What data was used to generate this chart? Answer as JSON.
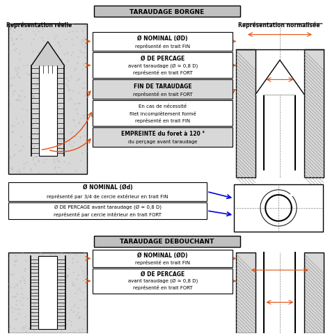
{
  "title_borgne": "TARAUDAGE BORGNE",
  "title_debouchant": "TARAUDAGE DEBOUCHANT",
  "label_reelle": "Représentation réelle",
  "label_normalisee": "Représentation normalisée",
  "box1_line1": "Ø NOMINAL (ØD)",
  "box1_line2": "représenté en trait FIN",
  "box2_line1": "Ø DE PERCAGE",
  "box2_line2": "avant taraudage (Ø ≈ 0,8 D)",
  "box2_line3": "représenté en trait FORT",
  "box3_line1": "FIN DE TARAUDAGE",
  "box3_line2": "représenté en trait FORT",
  "box4_line1": "En cas de nécessité",
  "box4_line2": "filet incomplètement formé",
  "box4_line3": "représenté en trait FIN",
  "box5_line1": "EMPREINTE du foret à 120 °",
  "box5_line2": "du perçage avant taraudage",
  "mid_box1_l1": "Ø NOMINAL (Ød)",
  "mid_box1_l2a": "représenté par ",
  "mid_box1_l2b": "3/4 de cercle extérieur",
  "mid_box1_l2c": " en trait FIN",
  "mid_box2_l1a": "Ø DE PERCAGE",
  "mid_box2_l1b": " avant taraudage (Ø ≈ 0,8 D)",
  "mid_box2_l2a": "représenté par ",
  "mid_box2_l2b": "cercle intérieur",
  "mid_box2_l2c": " en trait FORT",
  "deb_box1_l1": "Ø NOMINAL (ØD)",
  "deb_box1_l2": "représenté en trait FIN",
  "deb_box2_l1": "Ø DE PERCAGE",
  "deb_box2_l2": "avant taraudage (Ø ≈ 0,8 D)",
  "deb_box2_l3": "représenté en trait FORT",
  "color_orange": "#E05010",
  "color_blue": "#0000DD",
  "color_black": "#000000",
  "color_gray_title": "#888888",
  "color_bg": "#ffffff",
  "color_hatch": "#cccccc"
}
